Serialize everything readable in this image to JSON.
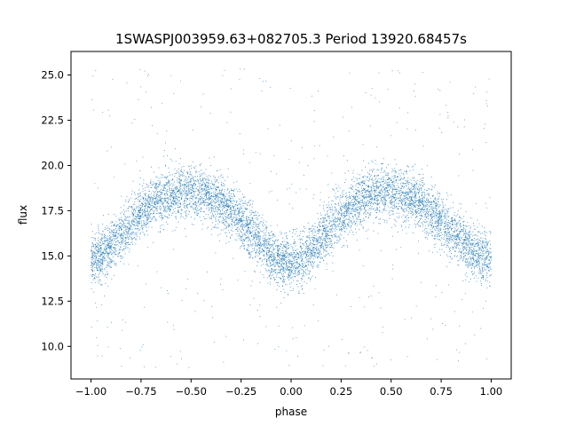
{
  "chart_data": {
    "type": "scatter",
    "title": "1SWASPJ003959.63+082705.3 Period 13920.68457s",
    "xlabel": "phase",
    "ylabel": "flux",
    "xlim": [
      -1.1,
      1.1
    ],
    "ylim": [
      8.2,
      26.3
    ],
    "x_ticks": [
      -1.0,
      -0.75,
      -0.5,
      -0.25,
      0.0,
      0.25,
      0.5,
      0.75,
      1.0
    ],
    "x_tick_labels": [
      "−1.00",
      "−0.75",
      "−0.50",
      "−0.25",
      "0.00",
      "0.25",
      "0.50",
      "0.75",
      "1.00"
    ],
    "y_ticks": [
      10.0,
      12.5,
      15.0,
      17.5,
      20.0,
      22.5,
      25.0
    ],
    "y_tick_labels": [
      "10.0",
      "12.5",
      "15.0",
      "17.5",
      "20.0",
      "22.5",
      "25.0"
    ],
    "grid": false,
    "marker_color": "#1f77b4",
    "series": [
      {
        "x": [
          -1.0,
          -0.95,
          -0.9,
          -0.85,
          -0.8,
          -0.75,
          -0.7,
          -0.65,
          -0.6,
          -0.55,
          -0.5,
          -0.45,
          -0.4,
          -0.35,
          -0.3,
          -0.25,
          -0.2,
          -0.15,
          -0.1,
          -0.05,
          0.0,
          0.05,
          0.1,
          0.15,
          0.2,
          0.25,
          0.3,
          0.35,
          0.4,
          0.45,
          0.5,
          0.55,
          0.6,
          0.65,
          0.7,
          0.75,
          0.8,
          0.85,
          0.9,
          0.95,
          1.0
        ],
        "y": [
          14.8,
          15.0,
          15.5,
          16.1,
          16.8,
          17.4,
          17.9,
          18.2,
          18.4,
          18.5,
          18.5,
          18.4,
          18.2,
          17.9,
          17.4,
          16.9,
          16.3,
          15.6,
          15.0,
          14.7,
          14.6,
          14.8,
          15.2,
          15.9,
          16.6,
          17.2,
          17.8,
          18.2,
          18.4,
          18.5,
          18.5,
          18.4,
          18.2,
          17.9,
          17.4,
          16.9,
          16.4,
          15.8,
          15.3,
          15.0,
          14.8
        ],
        "y_scatter_halfwidth": 1.3,
        "outlier_range": [
          8.8,
          25.4
        ]
      }
    ]
  }
}
